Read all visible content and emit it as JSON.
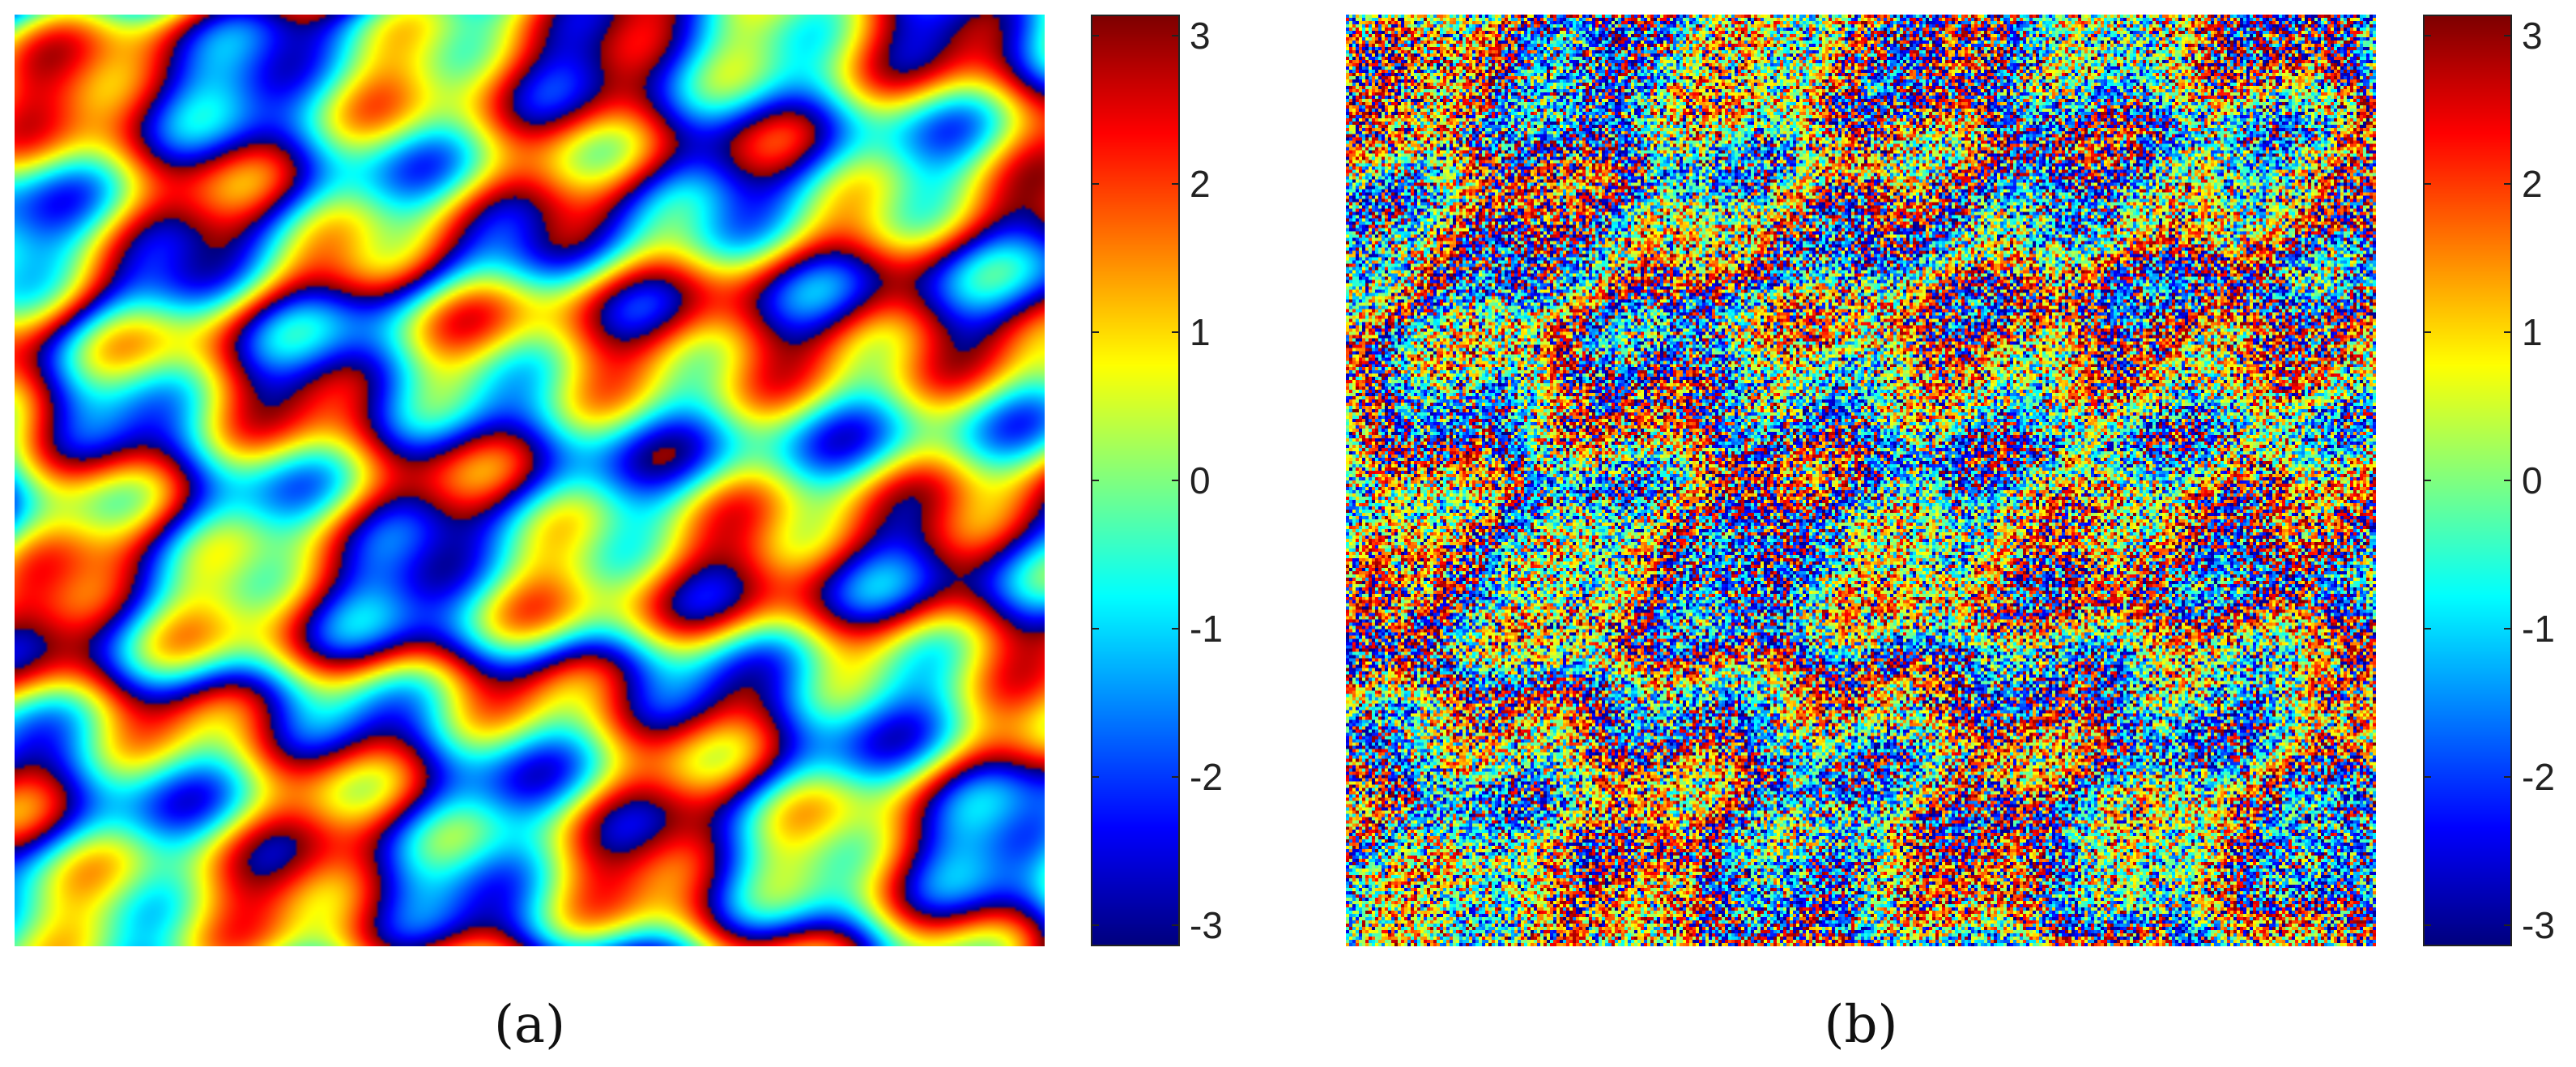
{
  "chart_data": [
    {
      "type": "heatmap",
      "panel_label": "(a)",
      "description_kind": "wrapped phase",
      "colormap": "jet",
      "value_range": [
        -3.1416,
        3.1416
      ],
      "colorbar_ticks": [
        "3",
        "2",
        "1",
        "0",
        "-1",
        "-2",
        "-3"
      ],
      "colorbar_tick_values": [
        3,
        2,
        1,
        0,
        -1,
        -2,
        -3
      ],
      "noise": 0
    },
    {
      "type": "heatmap",
      "panel_label": "(b)",
      "description_kind": "noisy wrapped phase",
      "colormap": "jet",
      "value_range": [
        -3.1416,
        3.1416
      ],
      "colorbar_ticks": [
        "3",
        "2",
        "1",
        "0",
        "-1",
        "-2",
        "-3"
      ],
      "colorbar_tick_values": [
        3,
        2,
        1,
        0,
        -1,
        -2,
        -3
      ],
      "noise": 1.4
    }
  ]
}
